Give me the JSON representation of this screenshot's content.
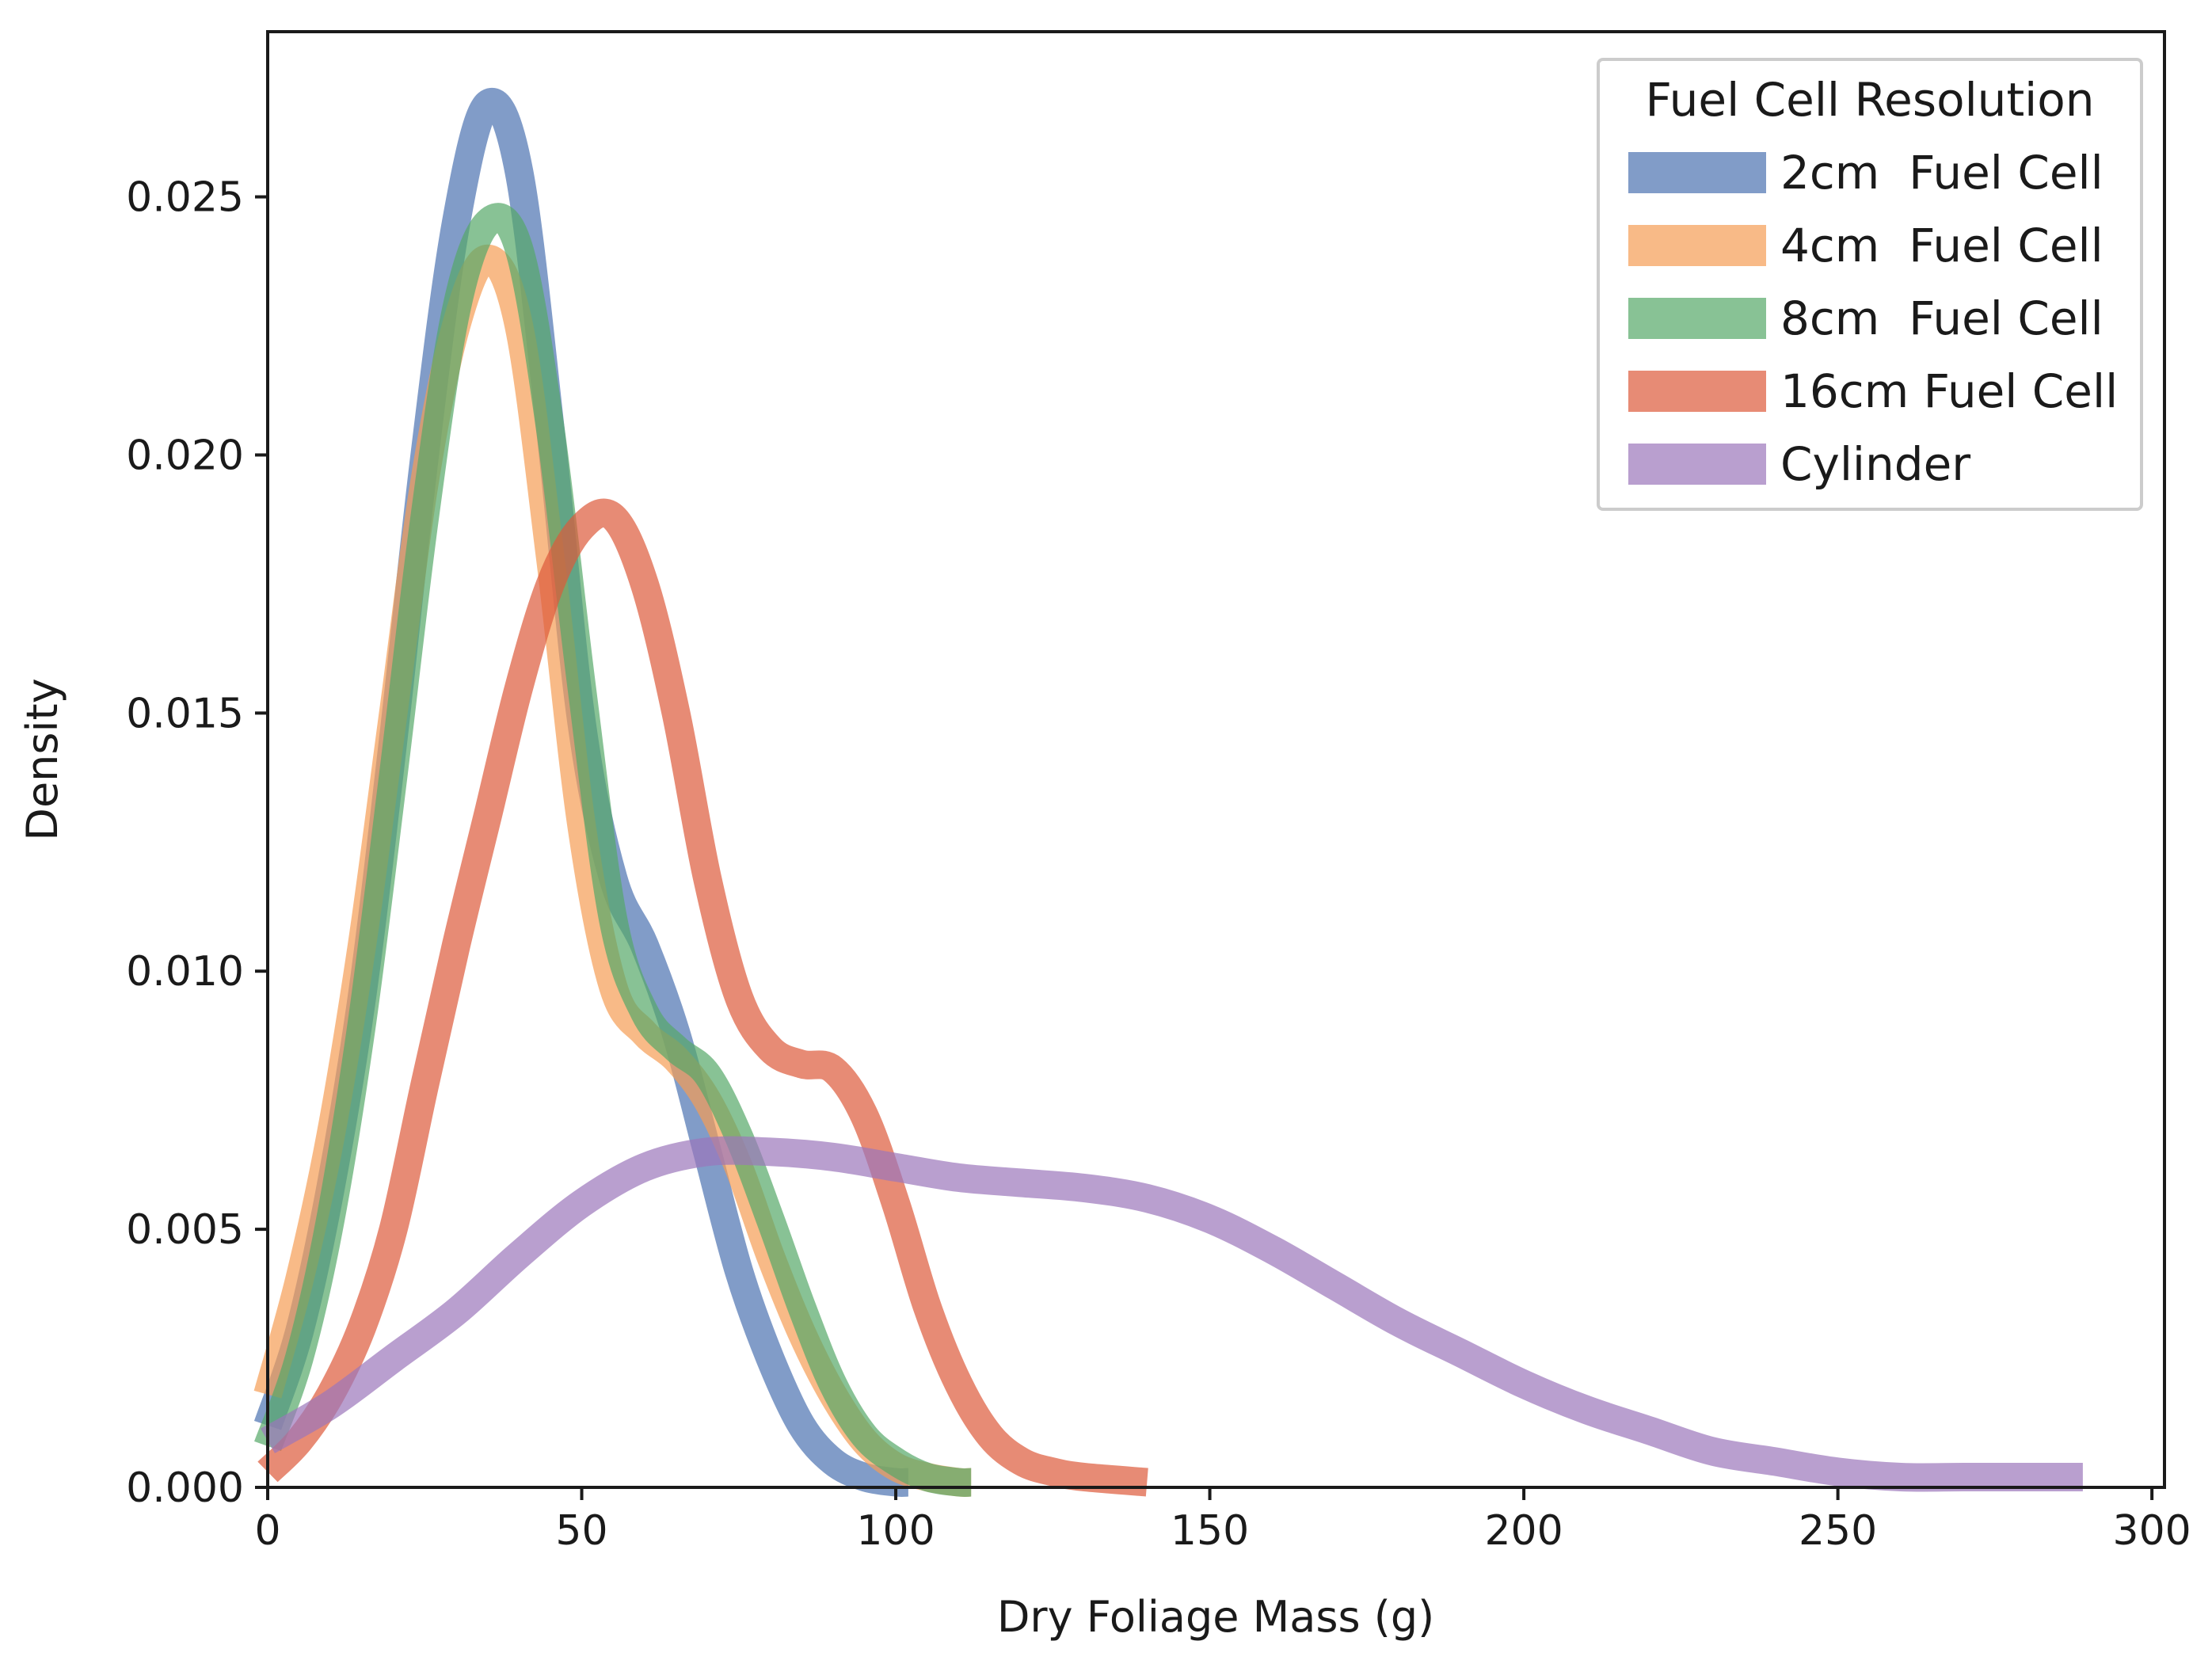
{
  "chart_data": {
    "type": "line",
    "title": "",
    "xlabel": "Dry Foliage Mass (g)",
    "ylabel": "Density",
    "xlim": [
      0,
      302
    ],
    "ylim": [
      0,
      0.0282
    ],
    "xticks": [
      0,
      50,
      100,
      150,
      200,
      250,
      300
    ],
    "yticks": [
      0.0,
      0.005,
      0.01,
      0.015,
      0.02,
      0.025
    ],
    "xtick_labels": [
      "0",
      "50",
      "100",
      "150",
      "200",
      "250",
      "300"
    ],
    "ytick_labels": [
      "0.000",
      "0.005",
      "0.010",
      "0.015",
      "0.020",
      "0.025"
    ],
    "grid": false,
    "legend": {
      "title": "Fuel Cell Resolution",
      "position": "top-right"
    },
    "series": [
      {
        "name": "2cm  Fuel Cell",
        "color": "#4c72b0",
        "x": [
          0,
          5,
          10,
          15,
          20,
          25,
          30,
          35,
          40,
          45,
          50,
          55,
          60,
          65,
          70,
          75,
          80,
          85,
          90,
          95,
          100,
          102
        ],
        "y": [
          0.0012,
          0.003,
          0.0058,
          0.0095,
          0.0145,
          0.02,
          0.0245,
          0.0268,
          0.0255,
          0.0205,
          0.0148,
          0.0118,
          0.0105,
          0.0088,
          0.0065,
          0.0042,
          0.0025,
          0.0012,
          0.0005,
          0.0002,
          0.0001,
          0.0001
        ]
      },
      {
        "name": "4cm  Fuel Cell",
        "color": "#f59c54",
        "x": [
          0,
          5,
          10,
          15,
          20,
          25,
          30,
          35,
          40,
          45,
          50,
          55,
          60,
          65,
          70,
          75,
          80,
          85,
          90,
          95,
          100,
          105,
          110,
          112
        ],
        "y": [
          0.0018,
          0.004,
          0.0068,
          0.0105,
          0.015,
          0.0195,
          0.0225,
          0.0238,
          0.0225,
          0.018,
          0.0128,
          0.0097,
          0.0088,
          0.0083,
          0.0075,
          0.0062,
          0.0045,
          0.003,
          0.0018,
          0.0009,
          0.0004,
          0.0002,
          0.0001,
          0.0001
        ]
      },
      {
        "name": "8cm  Fuel Cell",
        "color": "#55a868",
        "x": [
          0,
          5,
          10,
          15,
          20,
          25,
          30,
          35,
          40,
          45,
          50,
          55,
          60,
          65,
          70,
          75,
          80,
          85,
          90,
          95,
          100,
          105,
          110,
          112
        ],
        "y": [
          0.0008,
          0.0025,
          0.0052,
          0.009,
          0.0138,
          0.0188,
          0.0228,
          0.0245,
          0.024,
          0.0205,
          0.0155,
          0.011,
          0.0092,
          0.0085,
          0.008,
          0.0068,
          0.0052,
          0.0035,
          0.002,
          0.001,
          0.0005,
          0.0002,
          0.0001,
          0.0001
        ]
      },
      {
        "name": "16cm Fuel Cell",
        "color": "#dd5a3a",
        "x": [
          0,
          5,
          10,
          15,
          20,
          25,
          30,
          35,
          40,
          45,
          50,
          55,
          60,
          65,
          70,
          75,
          80,
          85,
          90,
          95,
          100,
          105,
          110,
          115,
          120,
          125,
          130,
          140
        ],
        "y": [
          0.0003,
          0.0009,
          0.0018,
          0.0031,
          0.005,
          0.0078,
          0.0105,
          0.013,
          0.0155,
          0.0175,
          0.0186,
          0.0188,
          0.0175,
          0.015,
          0.0118,
          0.0095,
          0.0085,
          0.0082,
          0.0081,
          0.0072,
          0.0055,
          0.0035,
          0.002,
          0.001,
          0.0005,
          0.0003,
          0.0002,
          0.0001
        ]
      },
      {
        "name": "Cylinder",
        "color": "#9b76ba",
        "x": [
          0,
          10,
          20,
          30,
          40,
          50,
          60,
          70,
          80,
          90,
          100,
          110,
          120,
          130,
          140,
          150,
          160,
          170,
          180,
          190,
          200,
          210,
          220,
          230,
          240,
          250,
          260,
          270,
          280,
          289
        ],
        "y": [
          0.0009,
          0.0016,
          0.0025,
          0.0034,
          0.0045,
          0.0055,
          0.0062,
          0.0065,
          0.0065,
          0.0064,
          0.0062,
          0.006,
          0.0059,
          0.0058,
          0.0056,
          0.0052,
          0.0046,
          0.0039,
          0.0032,
          0.0026,
          0.002,
          0.0015,
          0.0011,
          0.0007,
          0.0005,
          0.0003,
          0.0002,
          0.0002,
          0.0002,
          0.0002
        ]
      }
    ]
  }
}
